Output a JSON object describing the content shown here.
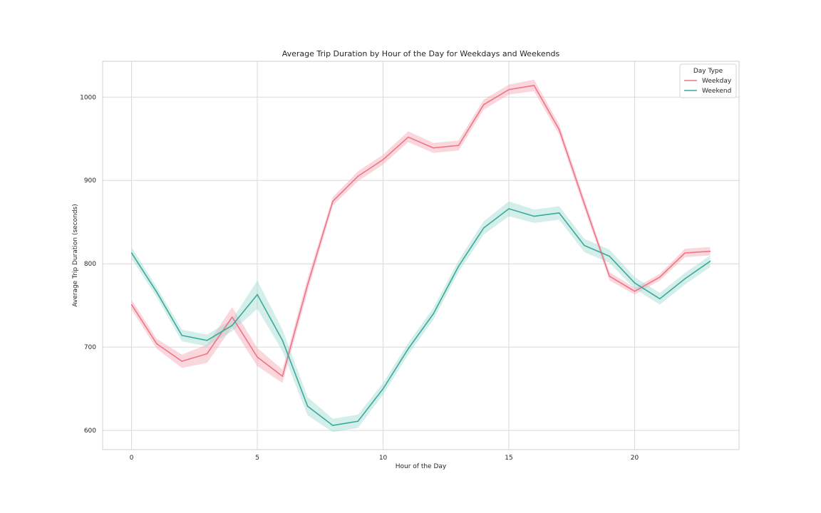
{
  "chart_data": {
    "type": "line",
    "title": "Average Trip Duration by Hour of the Day for Weekdays and Weekends",
    "xlabel": "Hour of the Day",
    "ylabel": "Average Trip Duration (seconds)",
    "xlim": [
      -1.15,
      24.15
    ],
    "ylim": [
      577,
      1043
    ],
    "xticks": [
      0,
      5,
      10,
      15,
      20
    ],
    "yticks": [
      600,
      700,
      800,
      900,
      1000
    ],
    "grid": true,
    "legend": {
      "title": "Day Type",
      "placement": "top-right"
    },
    "x": [
      0,
      1,
      2,
      3,
      4,
      5,
      6,
      7,
      8,
      9,
      10,
      11,
      12,
      13,
      14,
      15,
      16,
      17,
      18,
      19,
      20,
      21,
      22,
      23
    ],
    "series": [
      {
        "name": "Weekday",
        "color": "#f07386",
        "band_color": "#f5a6b3",
        "values": [
          751,
          704,
          683,
          692,
          736,
          688,
          665,
          775,
          875,
          905,
          925,
          952,
          939,
          942,
          991,
          1009,
          1014,
          961,
          872,
          785,
          767,
          784,
          813,
          815
        ],
        "lower": [
          745,
          698,
          675,
          681,
          724,
          677,
          657,
          767,
          870,
          899,
          919,
          946,
          933,
          936,
          985,
          1003,
          1007,
          955,
          866,
          780,
          763,
          780,
          808,
          810
        ],
        "upper": [
          757,
          710,
          691,
          703,
          748,
          699,
          673,
          783,
          880,
          911,
          931,
          959,
          945,
          948,
          997,
          1015,
          1021,
          967,
          878,
          790,
          771,
          788,
          818,
          820
        ]
      },
      {
        "name": "Weekend",
        "color": "#3aaa9b",
        "band_color": "#9fd9d0",
        "values": [
          813,
          766,
          714,
          708,
          726,
          763,
          708,
          629,
          606,
          611,
          650,
          698,
          740,
          797,
          843,
          866,
          857,
          861,
          822,
          809,
          777,
          758,
          782,
          803
        ],
        "lower": [
          806,
          760,
          707,
          701,
          719,
          746,
          695,
          618,
          598,
          603,
          643,
          691,
          733,
          790,
          835,
          857,
          849,
          853,
          814,
          801,
          770,
          751,
          775,
          796
        ],
        "upper": [
          820,
          772,
          721,
          715,
          733,
          780,
          721,
          640,
          614,
          619,
          657,
          705,
          747,
          804,
          851,
          875,
          865,
          869,
          830,
          817,
          784,
          765,
          789,
          810
        ]
      }
    ]
  }
}
